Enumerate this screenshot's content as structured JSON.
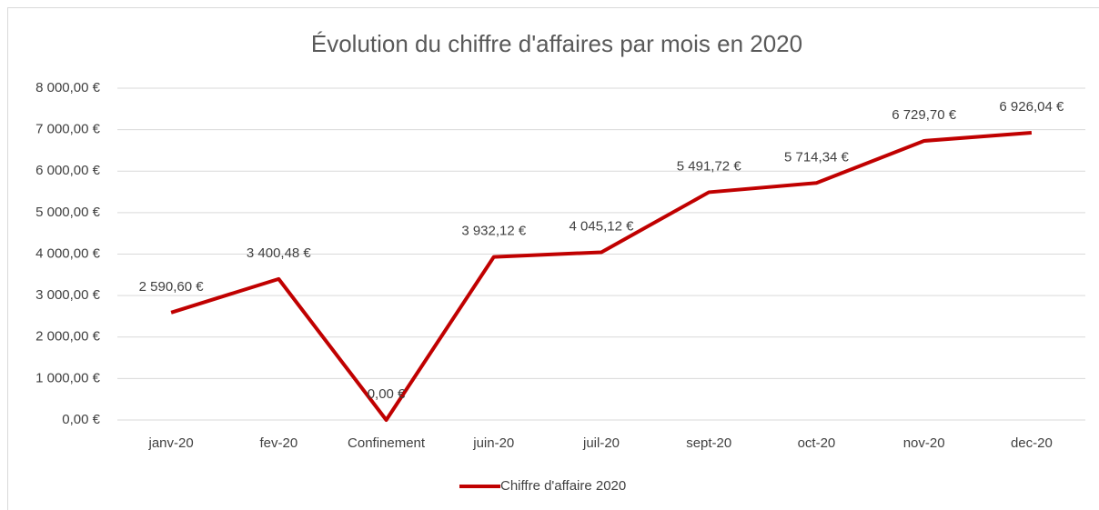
{
  "chart_data": {
    "type": "line",
    "title": "Évolution du chiffre d'affaires par mois en 2020",
    "categories": [
      "janv-20",
      "fev-20",
      "Confinement",
      "juin-20",
      "juil-20",
      "sept-20",
      "oct-20",
      "nov-20",
      "dec-20"
    ],
    "series": [
      {
        "name": "Chiffre d'affaire 2020",
        "color": "#c00000",
        "values": [
          2590.6,
          3400.48,
          0,
          3932.12,
          4045.12,
          5491.72,
          5714.34,
          6729.7,
          6926.04
        ],
        "value_labels": [
          "2 590,60 €",
          "3 400,48 €",
          "0,00 €",
          "3 932,12 €",
          "4 045,12 €",
          "5 491,72 €",
          "5 714,34 €",
          "6 729,70 €",
          "6 926,04 €"
        ]
      }
    ],
    "ylim": [
      0,
      8000
    ],
    "yticks": [
      {
        "value": 0,
        "label": "0,00 €"
      },
      {
        "value": 1000,
        "label": "1 000,00 €"
      },
      {
        "value": 2000,
        "label": "2 000,00 €"
      },
      {
        "value": 3000,
        "label": "3 000,00 €"
      },
      {
        "value": 4000,
        "label": "4 000,00 €"
      },
      {
        "value": 5000,
        "label": "5 000,00 €"
      },
      {
        "value": 6000,
        "label": "6 000,00 €"
      },
      {
        "value": 7000,
        "label": "7 000,00 €"
      },
      {
        "value": 8000,
        "label": "8 000,00 €"
      }
    ],
    "grid": true,
    "legend": "bottom"
  }
}
